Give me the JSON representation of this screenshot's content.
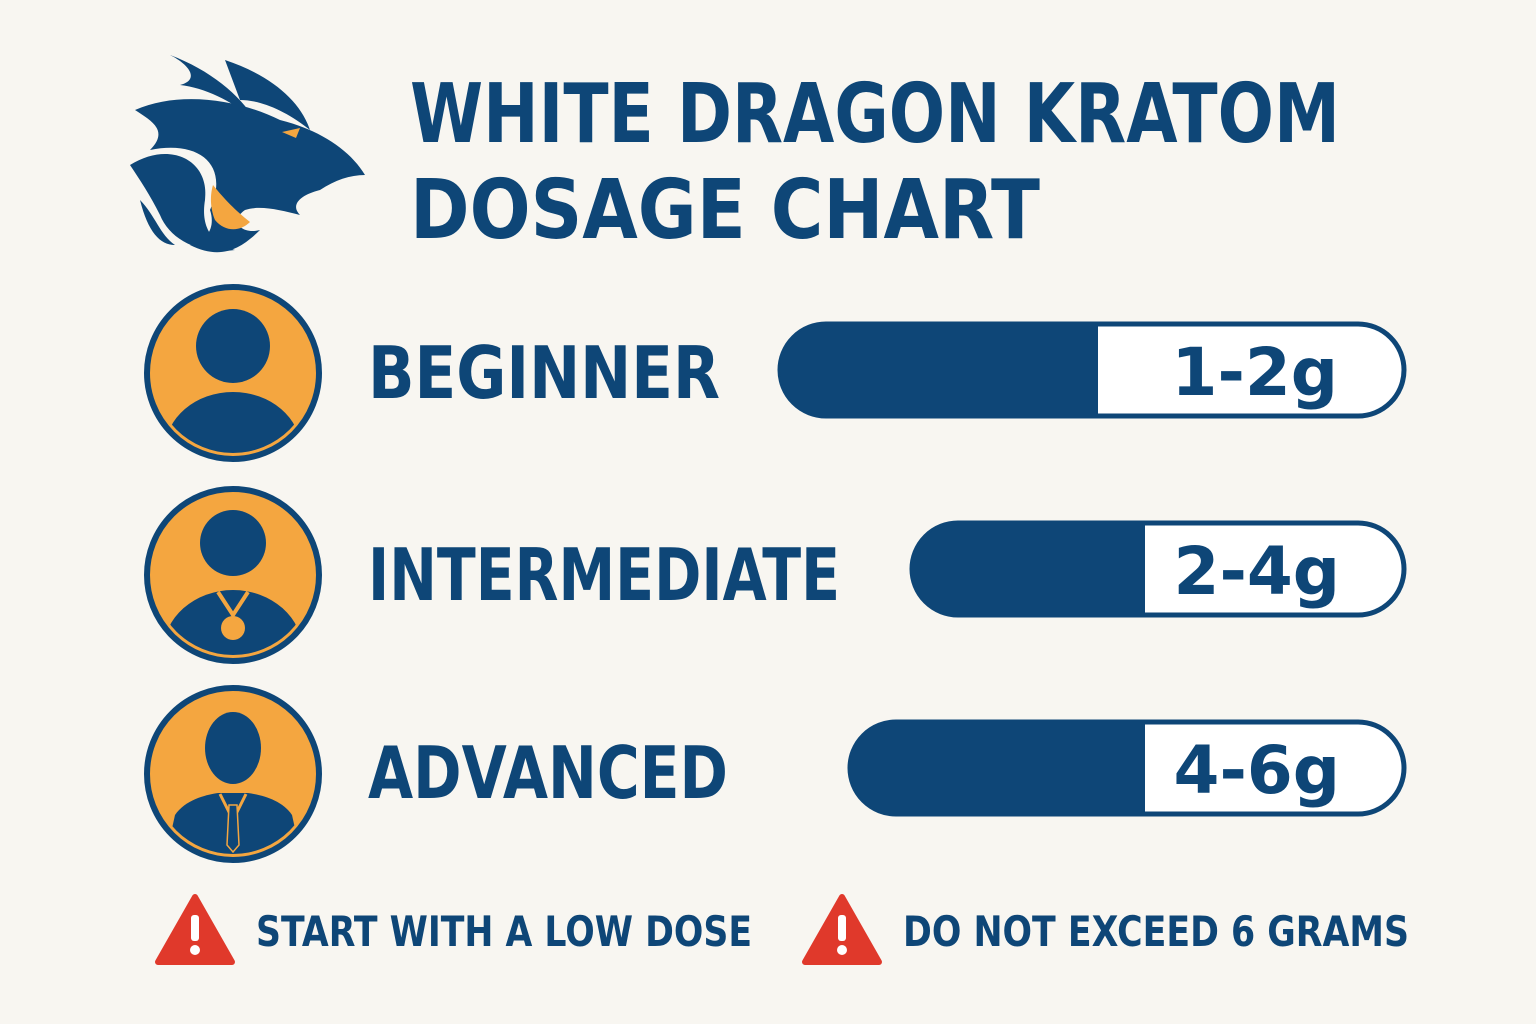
{
  "header": {
    "title": [
      "WHITE DRAGON KRATOM",
      "DOSAGE CHART"
    ]
  },
  "levels": [
    {
      "name": "BEGINNER",
      "dose": "1-2g"
    },
    {
      "name": "INTERMEDIATE",
      "dose": "2-4g"
    },
    {
      "name": "ADVANCED",
      "dose": "4-6g"
    }
  ],
  "warnings": [
    "START WITH A LOW DOSE",
    "DO NOT EXCEED 6 GRAMS"
  ]
}
